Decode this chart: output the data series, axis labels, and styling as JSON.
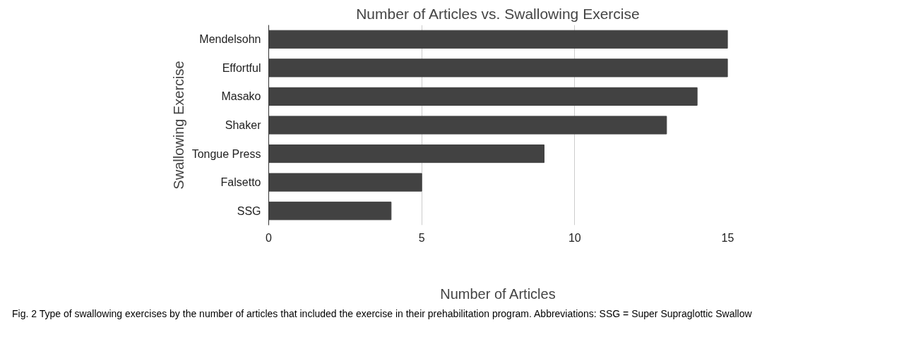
{
  "chart_data": {
    "type": "bar",
    "orientation": "horizontal",
    "title": "Number of Articles vs. Swallowing Exercise",
    "xlabel": "Number of Articles",
    "ylabel": "Swallowing Exercise",
    "categories": [
      "Mendelsohn",
      "Effortful",
      "Masako",
      "Shaker",
      "Tongue Press",
      "Falsetto",
      "SSG"
    ],
    "values": [
      15,
      15,
      14,
      13,
      9,
      5,
      4
    ],
    "color": "#424242",
    "xlim": [
      0,
      15
    ],
    "xticks": [
      0,
      5,
      10,
      15
    ],
    "grid": "x",
    "annotations": [
      "Fig. 2 Type of swallowing exercises by the number of articles that included the exercise in their prehabilitation program. Abbreviations: SSG = Super Supraglottic Swallow"
    ]
  }
}
